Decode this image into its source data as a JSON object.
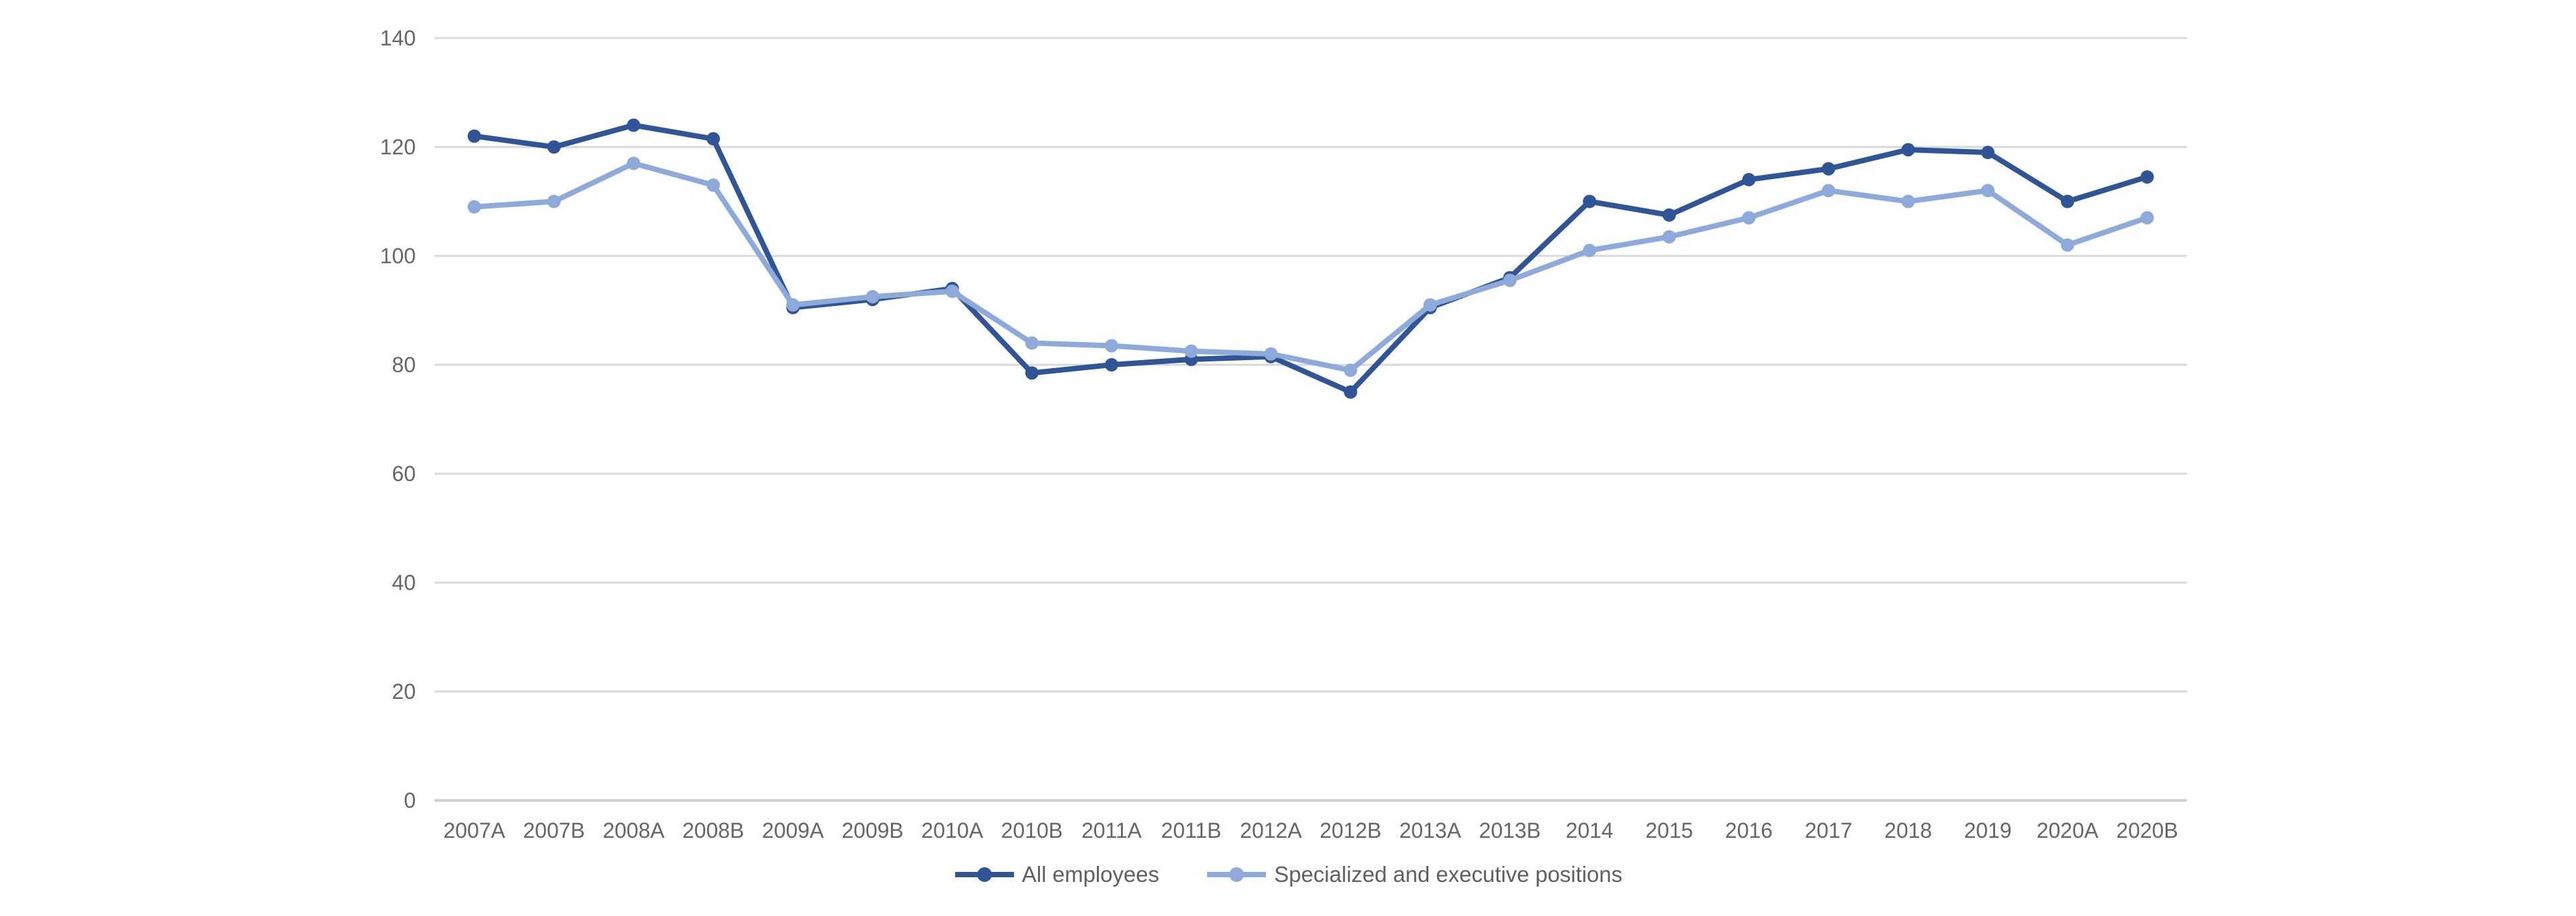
{
  "chart_data": {
    "type": "line",
    "categories": [
      "2007A",
      "2007B",
      "2008A",
      "2008B",
      "2009A",
      "2009B",
      "2010A",
      "2010B",
      "2011A",
      "2011B",
      "2012A",
      "2012B",
      "2013A",
      "2013B",
      "2014",
      "2015",
      "2016",
      "2017",
      "2018",
      "2019",
      "2020A",
      "2020B"
    ],
    "series": [
      {
        "name": "All employees",
        "color": "#2F5597",
        "values": [
          122,
          120,
          124,
          121.5,
          90.5,
          92,
          94,
          78.5,
          80,
          81,
          81.5,
          75,
          90.5,
          96,
          110,
          107.5,
          114,
          116,
          119.5,
          119,
          110,
          114.5
        ]
      },
      {
        "name": "Specialized and executive positions",
        "color": "#8EAADB",
        "values": [
          109,
          110,
          117,
          113,
          91,
          92.5,
          93.5,
          84,
          83.5,
          82.5,
          82,
          79,
          91,
          95.5,
          101,
          103.5,
          107,
          112,
          110,
          112,
          102,
          107
        ]
      }
    ],
    "ylim": [
      0,
      140
    ],
    "ytick_step": 20,
    "ytick_labels": [
      "0",
      "20",
      "40",
      "60",
      "80",
      "100",
      "120",
      "140"
    ],
    "grid": true,
    "legend_position": "bottom",
    "style": {
      "gridline_color": "#D9D9D9",
      "axis_line_color": "#CFCFCF",
      "tick_label_color": "#666666",
      "background_color": "#FFFFFF"
    }
  }
}
